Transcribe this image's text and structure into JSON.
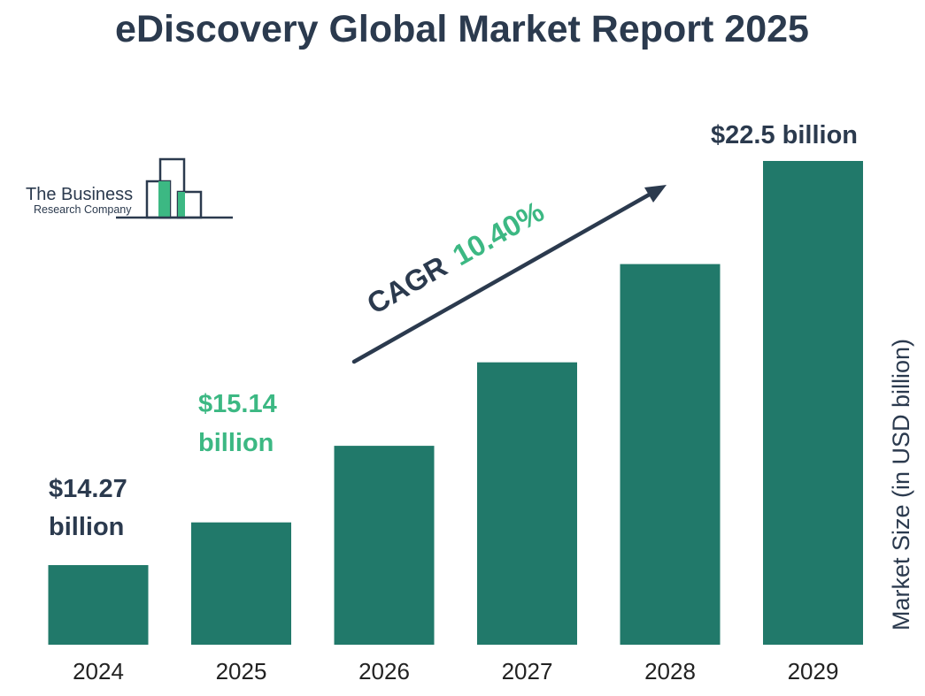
{
  "title": "eDiscovery Global Market Report 2025",
  "logo": {
    "line1": "The Business",
    "line2": "Research Company"
  },
  "cagr": {
    "label": "CAGR",
    "value": "10.40%"
  },
  "colors": {
    "bar": "#21796a",
    "title": "#2b3a4e",
    "highlight": "#3cb883",
    "text": "#222222"
  },
  "chart_data": {
    "type": "bar",
    "title": "eDiscovery Global Market Report 2025",
    "xlabel": "",
    "ylabel": "Market Size (in USD billion)",
    "categories": [
      "2024",
      "2025",
      "2026",
      "2027",
      "2028",
      "2029"
    ],
    "values": [
      14.27,
      15.14,
      16.7,
      18.4,
      20.4,
      22.5
    ],
    "ylim": [
      0,
      24
    ],
    "grid": false,
    "legend": "none",
    "value_labels": [
      {
        "year": "2024",
        "line1": "$14.27",
        "line2": "billion",
        "highlight": false
      },
      {
        "year": "2025",
        "line1": "$15.14",
        "line2": "billion",
        "highlight": true
      },
      {
        "year": "2029",
        "line1": "$22.5 billion",
        "line2": "",
        "highlight": false
      }
    ]
  }
}
